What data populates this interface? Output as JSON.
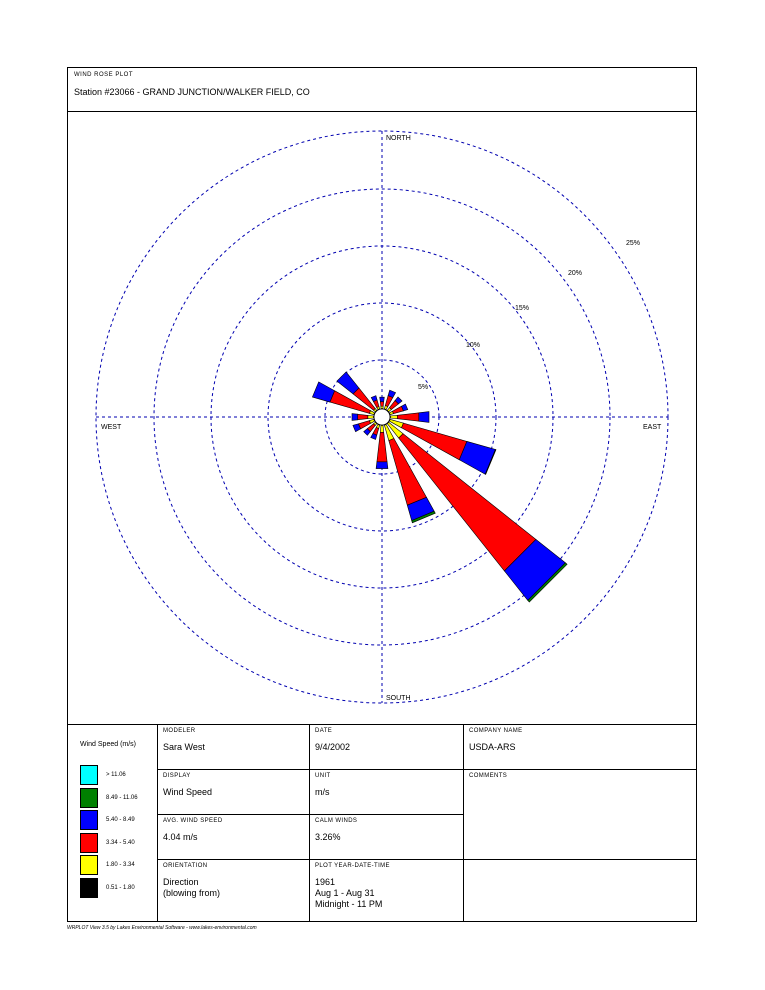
{
  "header": {
    "plot_title": "WIND ROSE PLOT",
    "station": "Station #23066 - GRAND JUNCTION/WALKER FIELD, CO"
  },
  "chart_data": {
    "type": "wind_rose",
    "rings": [
      {
        "pct": 5,
        "label": "5%"
      },
      {
        "pct": 10,
        "label": "10%"
      },
      {
        "pct": 15,
        "label": "15%"
      },
      {
        "pct": 20,
        "label": "20%"
      },
      {
        "pct": 25,
        "label": "25%"
      }
    ],
    "directions": {
      "north": "NORTH",
      "south": "SOUTH",
      "east": "EAST",
      "west": "WEST"
    },
    "speed_bins": [
      {
        "label": "0.51 - 1.80",
        "color": "#000000"
      },
      {
        "label": "1.80 - 3.34",
        "color": "#ffff00"
      },
      {
        "label": "3.34 - 5.40",
        "color": "#ff0000"
      },
      {
        "label": "5.40 - 8.49",
        "color": "#0000ff"
      },
      {
        "label": "8.49 - 11.06",
        "color": "#008000"
      },
      {
        "label": "> 11.06",
        "color": "#00ffff"
      }
    ],
    "petals": [
      {
        "dir": 0,
        "segments": [
          0.05,
          0.2,
          0.4,
          0.4,
          0,
          0
        ]
      },
      {
        "dir": 22.5,
        "segments": [
          0.05,
          0.3,
          0.9,
          0.5,
          0,
          0
        ]
      },
      {
        "dir": 45,
        "segments": [
          0.05,
          0.3,
          0.8,
          0.4,
          0,
          0
        ]
      },
      {
        "dir": 67.5,
        "segments": [
          0.05,
          0.3,
          0.9,
          0.4,
          0,
          0
        ]
      },
      {
        "dir": 90,
        "segments": [
          0.05,
          0.6,
          1.9,
          0.9,
          0,
          0
        ]
      },
      {
        "dir": 112.5,
        "segments": [
          0.05,
          1.2,
          5.8,
          2.6,
          0.05,
          0
        ]
      },
      {
        "dir": 135,
        "segments": [
          0.05,
          1.6,
          14.9,
          3.3,
          0.2,
          0
        ]
      },
      {
        "dir": 157.5,
        "segments": [
          0.05,
          1.4,
          5.9,
          1.4,
          0.2,
          0
        ]
      },
      {
        "dir": 180,
        "segments": [
          0.05,
          0.6,
          2.6,
          0.6,
          0,
          0
        ]
      },
      {
        "dir": 202.5,
        "segments": [
          0.05,
          0.3,
          0.6,
          0.4,
          0,
          0
        ]
      },
      {
        "dir": 225,
        "segments": [
          0.05,
          0.2,
          0.7,
          0.4,
          0,
          0
        ]
      },
      {
        "dir": 247.5,
        "segments": [
          0.05,
          0.4,
          1.0,
          0.5,
          0,
          0
        ]
      },
      {
        "dir": 270,
        "segments": [
          0.05,
          0.5,
          0.9,
          0.5,
          0,
          0
        ]
      },
      {
        "dir": 292.5,
        "segments": [
          0.05,
          0.4,
          3.6,
          1.6,
          0,
          0
        ]
      },
      {
        "dir": 315,
        "segments": [
          0.05,
          0.2,
          2.3,
          1.8,
          0,
          0
        ]
      },
      {
        "dir": 337.5,
        "segments": [
          0.05,
          0.2,
          0.6,
          0.4,
          0,
          0
        ]
      }
    ]
  },
  "legend": {
    "title": "Wind Speed (m/s)"
  },
  "info": {
    "modeler_label": "MODELER",
    "modeler_value": "Sara West",
    "date_label": "DATE",
    "date_value": "9/4/2002",
    "company_label": "COMPANY NAME",
    "company_value": "USDA-ARS",
    "display_label": "DISPLAY",
    "display_value": "Wind Speed",
    "unit_label": "UNIT",
    "unit_value": "m/s",
    "comments_label": "COMMENTS",
    "avg_label": "AVG. WIND SPEED",
    "avg_value": "4.04 m/s",
    "calm_label": "CALM WINDS",
    "calm_value": "3.26%",
    "orientation_label": "ORIENTATION",
    "orientation_value": "Direction\n(blowing from)",
    "plot_year_label": "PLOT YEAR-DATE-TIME",
    "plot_year_value": "1961\nAug 1 - Aug 31\nMidnight  -  11 PM"
  },
  "footer": "WRPLOT View 3.5 by Lakes Environmental Software - www.lakes-environmental.com"
}
